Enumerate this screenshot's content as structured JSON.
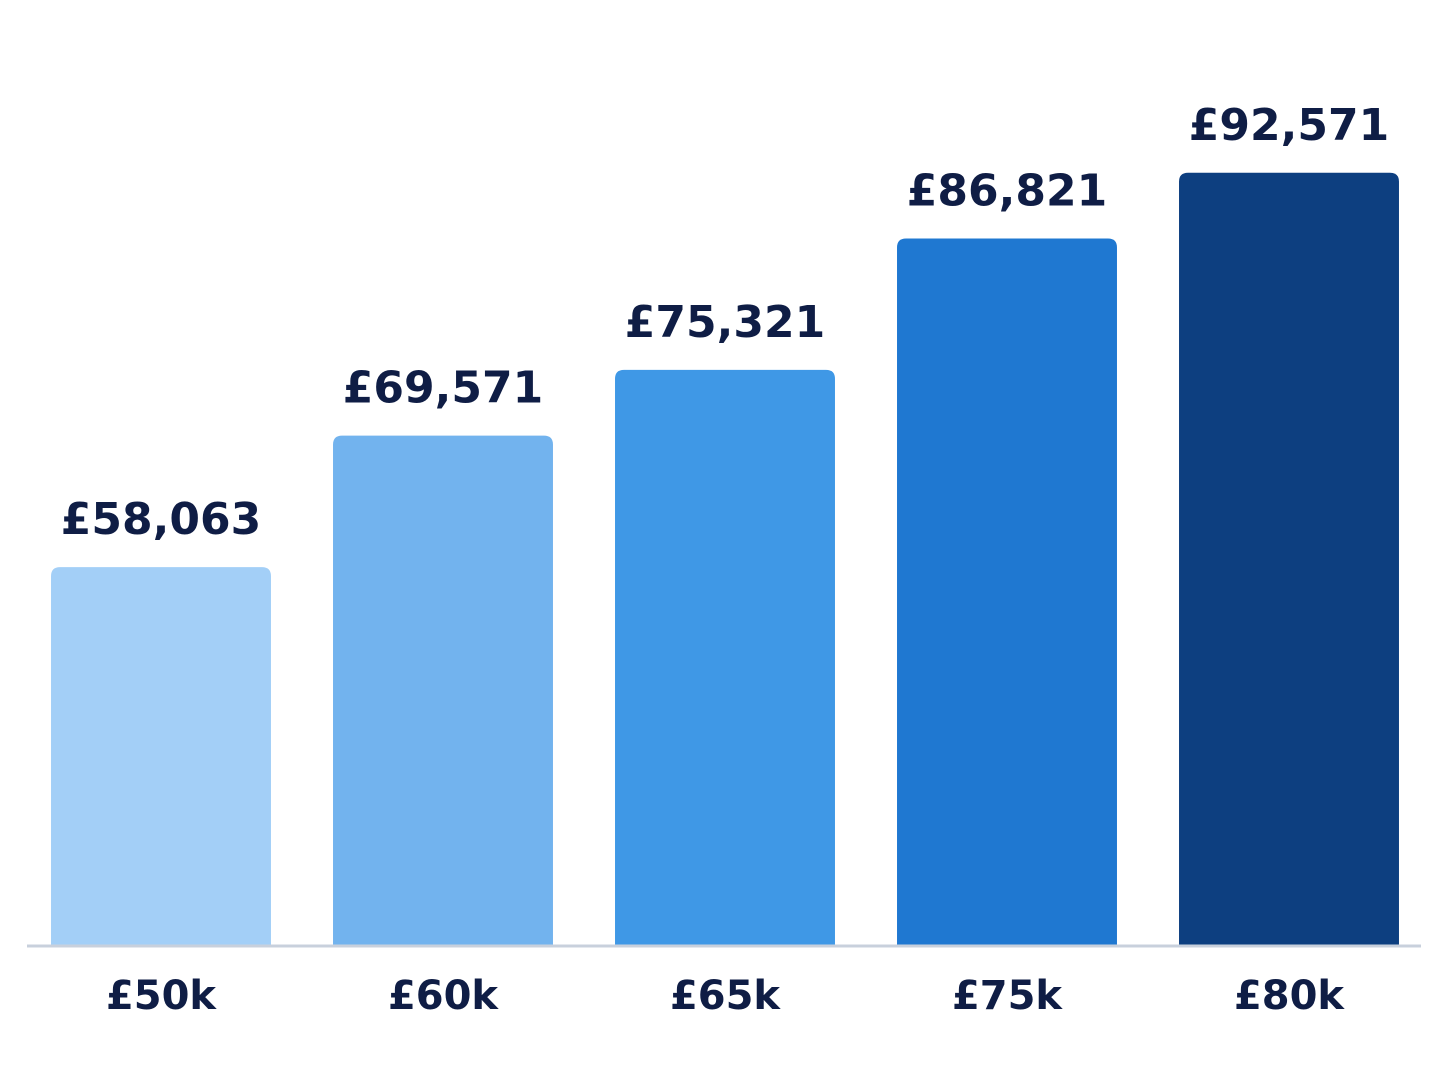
{
  "chart_data": {
    "type": "bar",
    "categories": [
      "£50k",
      "£60k",
      "£65k",
      "£75k",
      "£80k"
    ],
    "values": [
      58063,
      69571,
      75321,
      86821,
      92571
    ],
    "value_labels": [
      "£58,063",
      "£69,571",
      "£75,321",
      "£86,821",
      "£92,571"
    ],
    "colors": [
      "#a3cff7",
      "#72b3ee",
      "#3f98e6",
      "#1f78d1",
      "#0d3f80"
    ],
    "ylim": [
      25000,
      95000
    ]
  }
}
